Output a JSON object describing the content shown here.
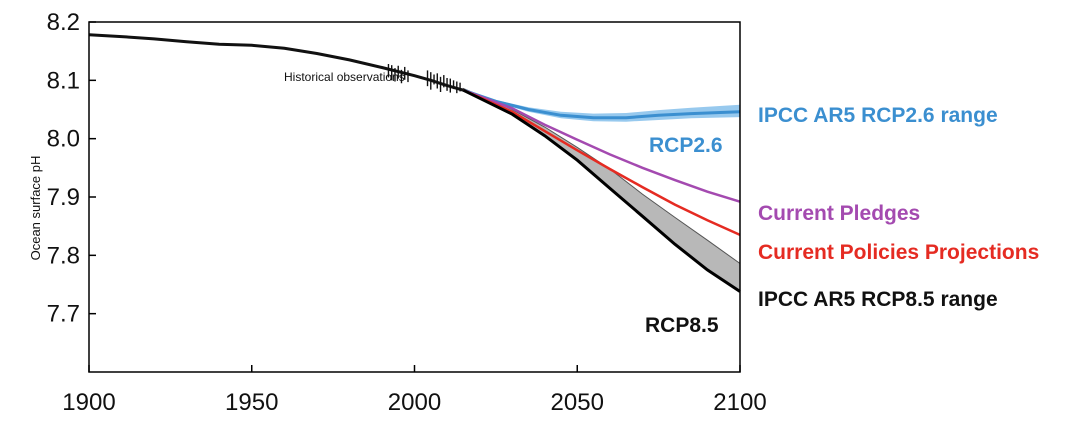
{
  "chart_data": {
    "type": "line",
    "title": "",
    "xlabel": "",
    "ylabel": "Ocean surface pH",
    "xlim": [
      1900,
      2100
    ],
    "ylim": [
      7.6,
      8.2
    ],
    "x_ticks": [
      1900,
      1950,
      2000,
      2050,
      2100
    ],
    "y_ticks": [
      7.7,
      7.8,
      7.9,
      8.0,
      8.1,
      8.2
    ],
    "x_tick_labels": [
      "1900",
      "1950",
      "2000",
      "2050",
      "2100"
    ],
    "y_tick_labels": [
      "7.7",
      "7.8",
      "7.9",
      "8.0",
      "8.1",
      "8.2"
    ],
    "grid": false,
    "annotations": [
      {
        "text": "Historical observations",
        "x": 1978,
        "y": 8.106
      }
    ],
    "series": [
      {
        "name": "Historical observations",
        "color": "#111111",
        "x": [
          1900,
          1910,
          1920,
          1930,
          1940,
          1950,
          1960,
          1970,
          1980,
          1990,
          2000,
          2005,
          2010,
          2015
        ],
        "y": [
          8.178,
          8.175,
          8.171,
          8.166,
          8.162,
          8.16,
          8.155,
          8.146,
          8.135,
          8.122,
          8.108,
          8.1,
          8.091,
          8.083
        ],
        "observation_scatter": {
          "x": [
            1992,
            1993,
            1994,
            1995,
            1996,
            1997,
            1998,
            2004,
            2005,
            2006,
            2007,
            2008,
            2009,
            2010,
            2011,
            2012,
            2013,
            2014
          ],
          "y_low": [
            8.105,
            8.1,
            8.098,
            8.103,
            8.095,
            8.101,
            8.097,
            8.09,
            8.084,
            8.093,
            8.086,
            8.08,
            8.088,
            8.082,
            8.079,
            8.085,
            8.078,
            8.081
          ],
          "y_high": [
            8.128,
            8.126,
            8.121,
            8.125,
            8.118,
            8.123,
            8.117,
            8.117,
            8.114,
            8.11,
            8.112,
            8.106,
            8.109,
            8.104,
            8.103,
            8.1,
            8.098,
            8.096
          ]
        }
      },
      {
        "name": "RCP2.6",
        "color": "#3b8fd0",
        "x": [
          2015,
          2025,
          2035,
          2045,
          2055,
          2065,
          2075,
          2085,
          2100
        ],
        "y": [
          8.083,
          8.064,
          8.05,
          8.04,
          8.036,
          8.036,
          8.04,
          8.043,
          8.046
        ],
        "range_low": [
          8.083,
          8.062,
          8.046,
          8.035,
          8.03,
          8.029,
          8.032,
          8.035,
          8.037
        ],
        "range_high": [
          8.083,
          8.066,
          8.054,
          8.046,
          8.043,
          8.044,
          8.049,
          8.053,
          8.058
        ]
      },
      {
        "name": "Current Pledges",
        "color": "#a44ab0",
        "x": [
          2015,
          2030,
          2040,
          2050,
          2060,
          2070,
          2080,
          2090,
          2100
        ],
        "y": [
          8.083,
          8.052,
          8.024,
          7.998,
          7.973,
          7.95,
          7.929,
          7.909,
          7.892
        ]
      },
      {
        "name": "Current Policies Projections",
        "color": "#e52b22",
        "x": [
          2015,
          2030,
          2040,
          2050,
          2060,
          2070,
          2080,
          2090,
          2100
        ],
        "y": [
          8.083,
          8.046,
          8.013,
          7.98,
          7.948,
          7.917,
          7.887,
          7.86,
          7.835
        ]
      },
      {
        "name": "RCP8.5",
        "color": "#000000",
        "x": [
          2015,
          2030,
          2040,
          2050,
          2060,
          2070,
          2080,
          2090,
          2100
        ],
        "y": [
          8.083,
          8.042,
          8.005,
          7.963,
          7.915,
          7.867,
          7.819,
          7.775,
          7.738
        ],
        "range_low": [
          8.083,
          8.042,
          8.005,
          7.963,
          7.915,
          7.867,
          7.819,
          7.775,
          7.738
        ],
        "range_high": [
          8.086,
          8.05,
          8.02,
          7.985,
          7.948,
          7.905,
          7.865,
          7.826,
          7.786
        ]
      }
    ],
    "label_texts": {
      "rcp26_range": "IPCC AR5 RCP2.6 range",
      "rcp26": "RCP2.6",
      "pledges": "Current Pledges",
      "policies": "Current Policies Projections",
      "rcp85_range": "IPCC AR5 RCP8.5 range",
      "rcp85": "RCP8.5"
    },
    "label_colors": {
      "rcp26_range": "#3b8fd0",
      "rcp26": "#3b8fd0",
      "pledges": "#a44ab0",
      "policies": "#e52b22",
      "rcp85_range": "#111111",
      "rcp85": "#111111"
    }
  }
}
